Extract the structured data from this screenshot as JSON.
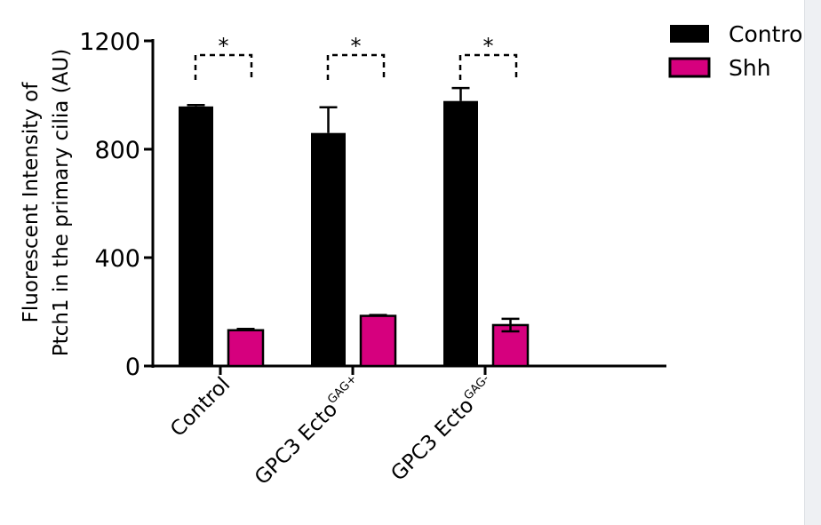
{
  "chart_data": {
    "type": "bar",
    "title": "",
    "ylabel_lines": [
      "Fluorescent Intensity of",
      "Ptch1 in the primary cilia (AU)"
    ],
    "xlabel": "",
    "ylim": [
      0,
      1200
    ],
    "yticks": [
      0,
      400,
      800,
      1200
    ],
    "categories": [
      {
        "base": "Control",
        "sup": ""
      },
      {
        "base": "GPC3 Ecto",
        "sup": "GAG+"
      },
      {
        "base": "GPC3 Ecto",
        "sup": "GAG-"
      }
    ],
    "series": [
      {
        "name": "Contro",
        "color": "#000000",
        "values": [
          958,
          860,
          978
        ],
        "errors": [
          5,
          95,
          48
        ]
      },
      {
        "name": "Shh",
        "color": "#d6007e",
        "values": [
          132,
          185,
          151
        ],
        "errors": [
          5,
          3,
          23
        ]
      }
    ],
    "significance": [
      "*",
      "*",
      "*"
    ],
    "legend_position": "top-right",
    "grid": false
  }
}
